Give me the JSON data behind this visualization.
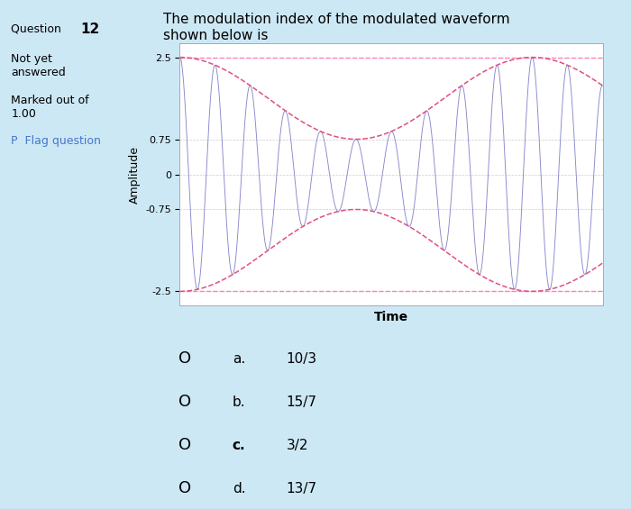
{
  "title_question": "The modulation index of the modulated waveform\nshown below is",
  "question_number": "12",
  "y_ticks": [
    2.5,
    0.75,
    0,
    -0.75,
    -2.5
  ],
  "y_tick_labels": [
    "2.5",
    "0.75",
    "0",
    "-0.75",
    "-2.5"
  ],
  "ylabel": "Amplitude",
  "xlabel": "Time",
  "carrier_freq": 12,
  "message_freq": 1.2,
  "A_max": 2.5,
  "A_min": 0.75,
  "carrier_color": "#7b7bc8",
  "envelope_color": "#e05080",
  "hline_pink_color": "#ff80c0",
  "grid_color": "#cccccc",
  "bg_color": "#ffffff",
  "outer_bg": "#cde8f5",
  "sidebar_bg": "#dce9f5",
  "options": [
    "a.   10/3",
    "b.   15/7",
    "c.   3/2",
    "d.   13/7"
  ],
  "option_letters": [
    "a.",
    "b.",
    "c.",
    "d."
  ],
  "option_values": [
    "10/3",
    "15/7",
    "3/2",
    "13/7"
  ],
  "plot_xlim": [
    0,
    1
  ],
  "plot_ylim": [
    -2.8,
    2.8
  ],
  "fig_width": 7.0,
  "fig_height": 5.65
}
